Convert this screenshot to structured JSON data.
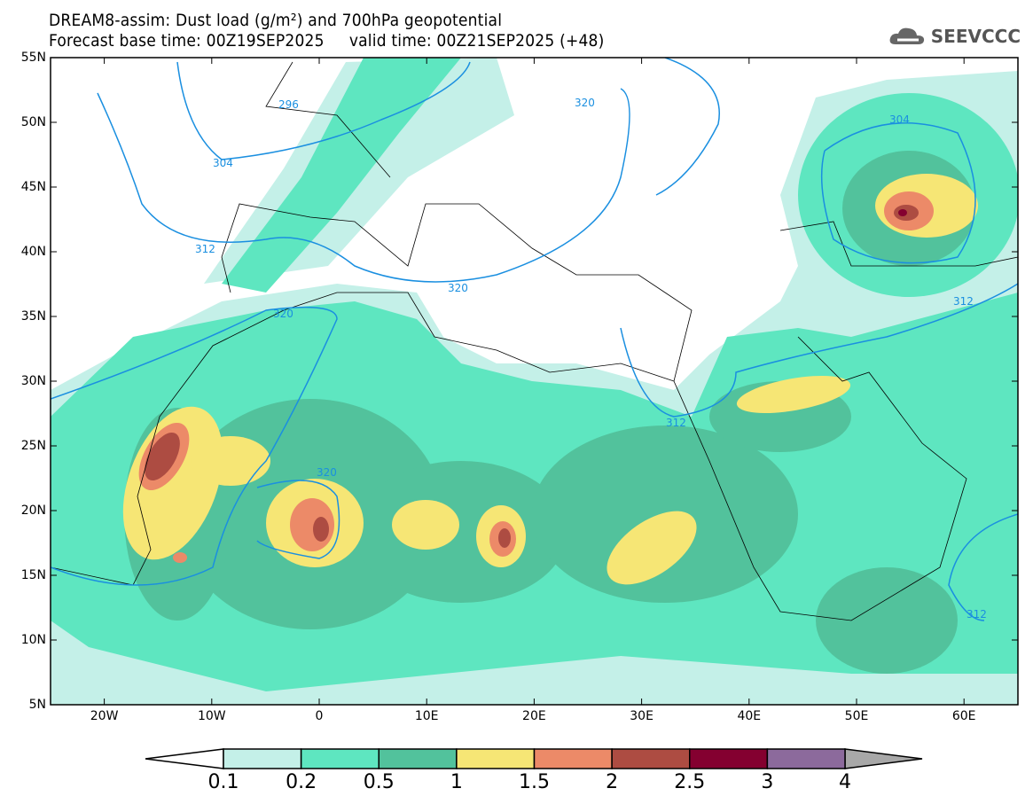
{
  "header": {
    "title": "DREAM8-assim: Dust load (g/m²) and 700hPa geopotential",
    "subtitle": "Forecast base time: 00Z19SEP2025     valid time: 00Z21SEP2025 (+48)",
    "logo": "SEEVCCC"
  },
  "axes": {
    "lat_labels": [
      "55N",
      "50N",
      "45N",
      "40N",
      "35N",
      "30N",
      "25N",
      "20N",
      "15N",
      "10N",
      "5N"
    ],
    "lon_labels": [
      "20W",
      "10W",
      "0",
      "10E",
      "20E",
      "30E",
      "40E",
      "50E",
      "60E"
    ]
  },
  "contour_labels": [
    "296",
    "304",
    "312",
    "320",
    "320",
    "320",
    "320",
    "304",
    "312",
    "312",
    "312"
  ],
  "colorbar": {
    "labels": [
      "0.1",
      "0.2",
      "0.5",
      "1",
      "1.5",
      "2",
      "2.5",
      "3",
      "4"
    ],
    "colors": [
      "#c4f0e8",
      "#5ee6c0",
      "#52c29c",
      "#f6e675",
      "#ec8a68",
      "#ad4c42",
      "#840030",
      "#8c6a9c"
    ],
    "over_color": "#a8a8a8"
  }
}
